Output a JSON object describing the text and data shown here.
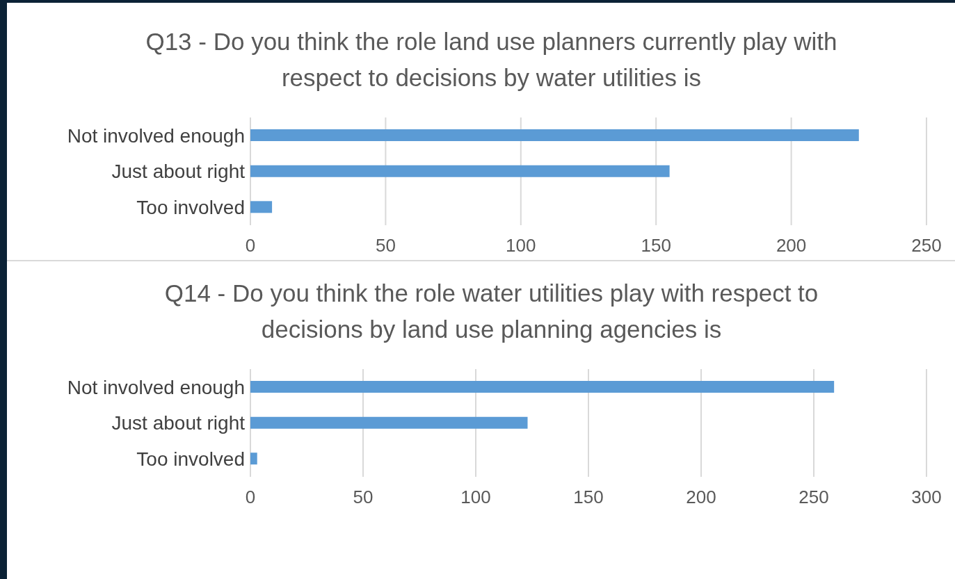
{
  "chart_data": [
    {
      "type": "bar",
      "orientation": "horizontal",
      "title": "Q13 - Do you think the role land use planners currently play with respect to decisions by water utilities is",
      "categories": [
        "Not involved enough",
        "Just about right",
        "Too involved"
      ],
      "values": [
        225,
        155,
        8
      ],
      "color": "#5b9bd5",
      "xlim": [
        0,
        250
      ],
      "xticks": [
        0,
        50,
        100,
        150,
        200,
        250
      ],
      "grid": "x"
    },
    {
      "type": "bar",
      "orientation": "horizontal",
      "title": "Q14 - Do you think the role water utilities play with respect to decisions by land use planning agencies is",
      "categories": [
        "Not involved enough",
        "Just about right",
        "Too involved"
      ],
      "values": [
        259,
        123,
        3
      ],
      "color": "#5b9bd5",
      "xlim": [
        0,
        300
      ],
      "xticks": [
        0,
        50,
        100,
        150,
        200,
        250,
        300
      ],
      "grid": "x"
    }
  ]
}
